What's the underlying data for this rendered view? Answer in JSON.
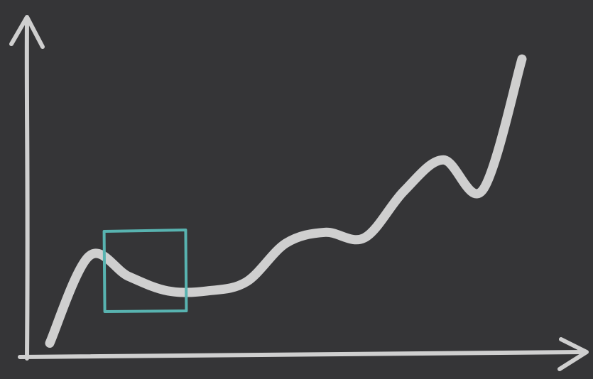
{
  "chart_data": {
    "type": "line",
    "title": "",
    "xlabel": "",
    "ylabel": "",
    "grid": false,
    "legend": "none",
    "x": [
      0,
      1,
      2,
      3,
      4,
      5,
      6,
      7,
      8,
      9,
      10,
      11,
      12
    ],
    "series": [
      {
        "values": [
          0.05,
          1.0,
          0.78,
          0.62,
          0.62,
          0.72,
          1.14,
          1.26,
          1.2,
          1.71,
          2.05,
          1.72,
          3.15
        ]
      }
    ],
    "ylim": [
      0,
      3.5
    ],
    "highlight_range": [
      1.4,
      3.4
    ],
    "colors": {
      "background": "#353537",
      "line": "#cfcfcf",
      "highlight": "#58b3b0"
    }
  }
}
